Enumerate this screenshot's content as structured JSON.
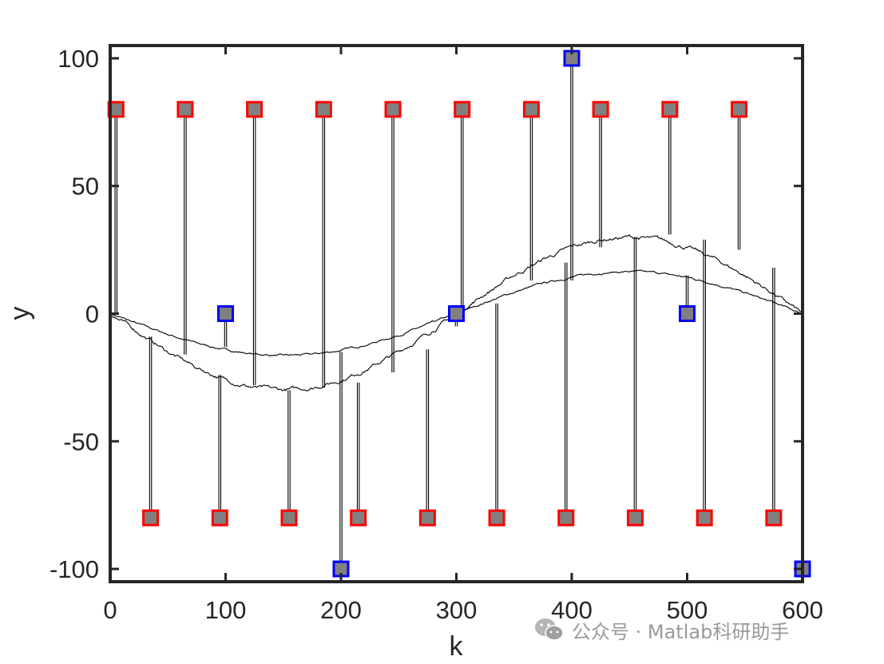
{
  "chart_data": {
    "type": "line",
    "title": "",
    "xlabel": "k",
    "ylabel": "y",
    "xlim": [
      0,
      600
    ],
    "ylim": [
      -105,
      105
    ],
    "xticks": [
      0,
      100,
      200,
      300,
      400,
      500,
      600
    ],
    "yticks": [
      -100,
      -50,
      0,
      50,
      100
    ],
    "xtick_labels": [
      "0",
      "100",
      "200",
      "300",
      "400",
      "500",
      "600"
    ],
    "ytick_labels": [
      "-100",
      "-50",
      "0",
      "50",
      "100"
    ],
    "grid": false,
    "series": [
      {
        "role": "smooth-curve",
        "color": "#000000",
        "x": [
          0,
          25,
          50,
          75,
          100,
          125,
          150,
          175,
          200,
          225,
          250,
          275,
          300,
          325,
          350,
          375,
          400,
          425,
          450,
          475,
          500,
          525,
          550,
          575,
          600
        ],
        "values": [
          0,
          -4.2,
          -8.1,
          -11.6,
          -14.2,
          -15.9,
          -16.5,
          -16.0,
          -14.4,
          -11.8,
          -8.4,
          -4.4,
          0,
          4.4,
          8.4,
          11.8,
          14.4,
          16.0,
          16.5,
          15.9,
          14.2,
          11.6,
          8.1,
          4.2,
          0
        ]
      },
      {
        "role": "wide-curve",
        "color": "#000000",
        "x": [
          0,
          25,
          50,
          75,
          100,
          125,
          150,
          175,
          200,
          225,
          250,
          275,
          300,
          325,
          350,
          375,
          400,
          425,
          450,
          475,
          500,
          525,
          550,
          575,
          600
        ],
        "values": [
          0,
          -7.5,
          -15.0,
          -21.2,
          -26.0,
          -29.0,
          -30.0,
          -29.0,
          -26.0,
          -21.2,
          -15.0,
          -7.8,
          0,
          7.8,
          15.0,
          21.2,
          26.0,
          29.0,
          30.0,
          29.0,
          26.0,
          21.2,
          15.0,
          7.8,
          0
        ]
      }
    ],
    "stem_markers": [
      {
        "x": 5,
        "y": 80,
        "base": 0,
        "edge": "#ff0000"
      },
      {
        "x": 35,
        "y": -80,
        "base": -9,
        "edge": "#ff0000"
      },
      {
        "x": 65,
        "y": 80,
        "base": -16,
        "edge": "#ff0000"
      },
      {
        "x": 95,
        "y": -80,
        "base": -24,
        "edge": "#ff0000"
      },
      {
        "x": 100,
        "y": 0,
        "base": -13,
        "edge": "#0000ff"
      },
      {
        "x": 125,
        "y": 80,
        "base": -28,
        "edge": "#ff0000"
      },
      {
        "x": 155,
        "y": -80,
        "base": -30,
        "edge": "#ff0000"
      },
      {
        "x": 185,
        "y": 80,
        "base": -29,
        "edge": "#ff0000"
      },
      {
        "x": 200,
        "y": -100,
        "base": -15,
        "edge": "#0000ff"
      },
      {
        "x": 215,
        "y": -80,
        "base": -27,
        "edge": "#ff0000"
      },
      {
        "x": 245,
        "y": 80,
        "base": -23,
        "edge": "#ff0000"
      },
      {
        "x": 275,
        "y": -80,
        "base": -14,
        "edge": "#ff0000"
      },
      {
        "x": 300,
        "y": 0,
        "base": -5,
        "edge": "#0000ff"
      },
      {
        "x": 305,
        "y": 80,
        "base": -1,
        "edge": "#ff0000"
      },
      {
        "x": 335,
        "y": -80,
        "base": 4,
        "edge": "#ff0000"
      },
      {
        "x": 365,
        "y": 80,
        "base": 13,
        "edge": "#ff0000"
      },
      {
        "x": 395,
        "y": -80,
        "base": 20,
        "edge": "#ff0000"
      },
      {
        "x": 400,
        "y": 100,
        "base": 13,
        "edge": "#0000ff"
      },
      {
        "x": 425,
        "y": 80,
        "base": 26,
        "edge": "#ff0000"
      },
      {
        "x": 455,
        "y": -80,
        "base": 30,
        "edge": "#ff0000"
      },
      {
        "x": 485,
        "y": 80,
        "base": 31,
        "edge": "#ff0000"
      },
      {
        "x": 500,
        "y": 0,
        "base": 15,
        "edge": "#0000ff"
      },
      {
        "x": 515,
        "y": -80,
        "base": 29,
        "edge": "#ff0000"
      },
      {
        "x": 545,
        "y": 80,
        "base": 25,
        "edge": "#ff0000"
      },
      {
        "x": 575,
        "y": -80,
        "base": 18,
        "edge": "#ff0000"
      },
      {
        "x": 600,
        "y": -100,
        "base": 5,
        "edge": "#0000ff"
      }
    ],
    "marker_fill": "#808080"
  },
  "colors": {
    "axes": "#262626",
    "marker_fill": "#808080",
    "marker_edge_red": "#ff0000",
    "marker_edge_blue": "#0000ff"
  },
  "watermark": {
    "text": "公众号 · Matlab科研助手",
    "icon": "wechat-icon"
  }
}
